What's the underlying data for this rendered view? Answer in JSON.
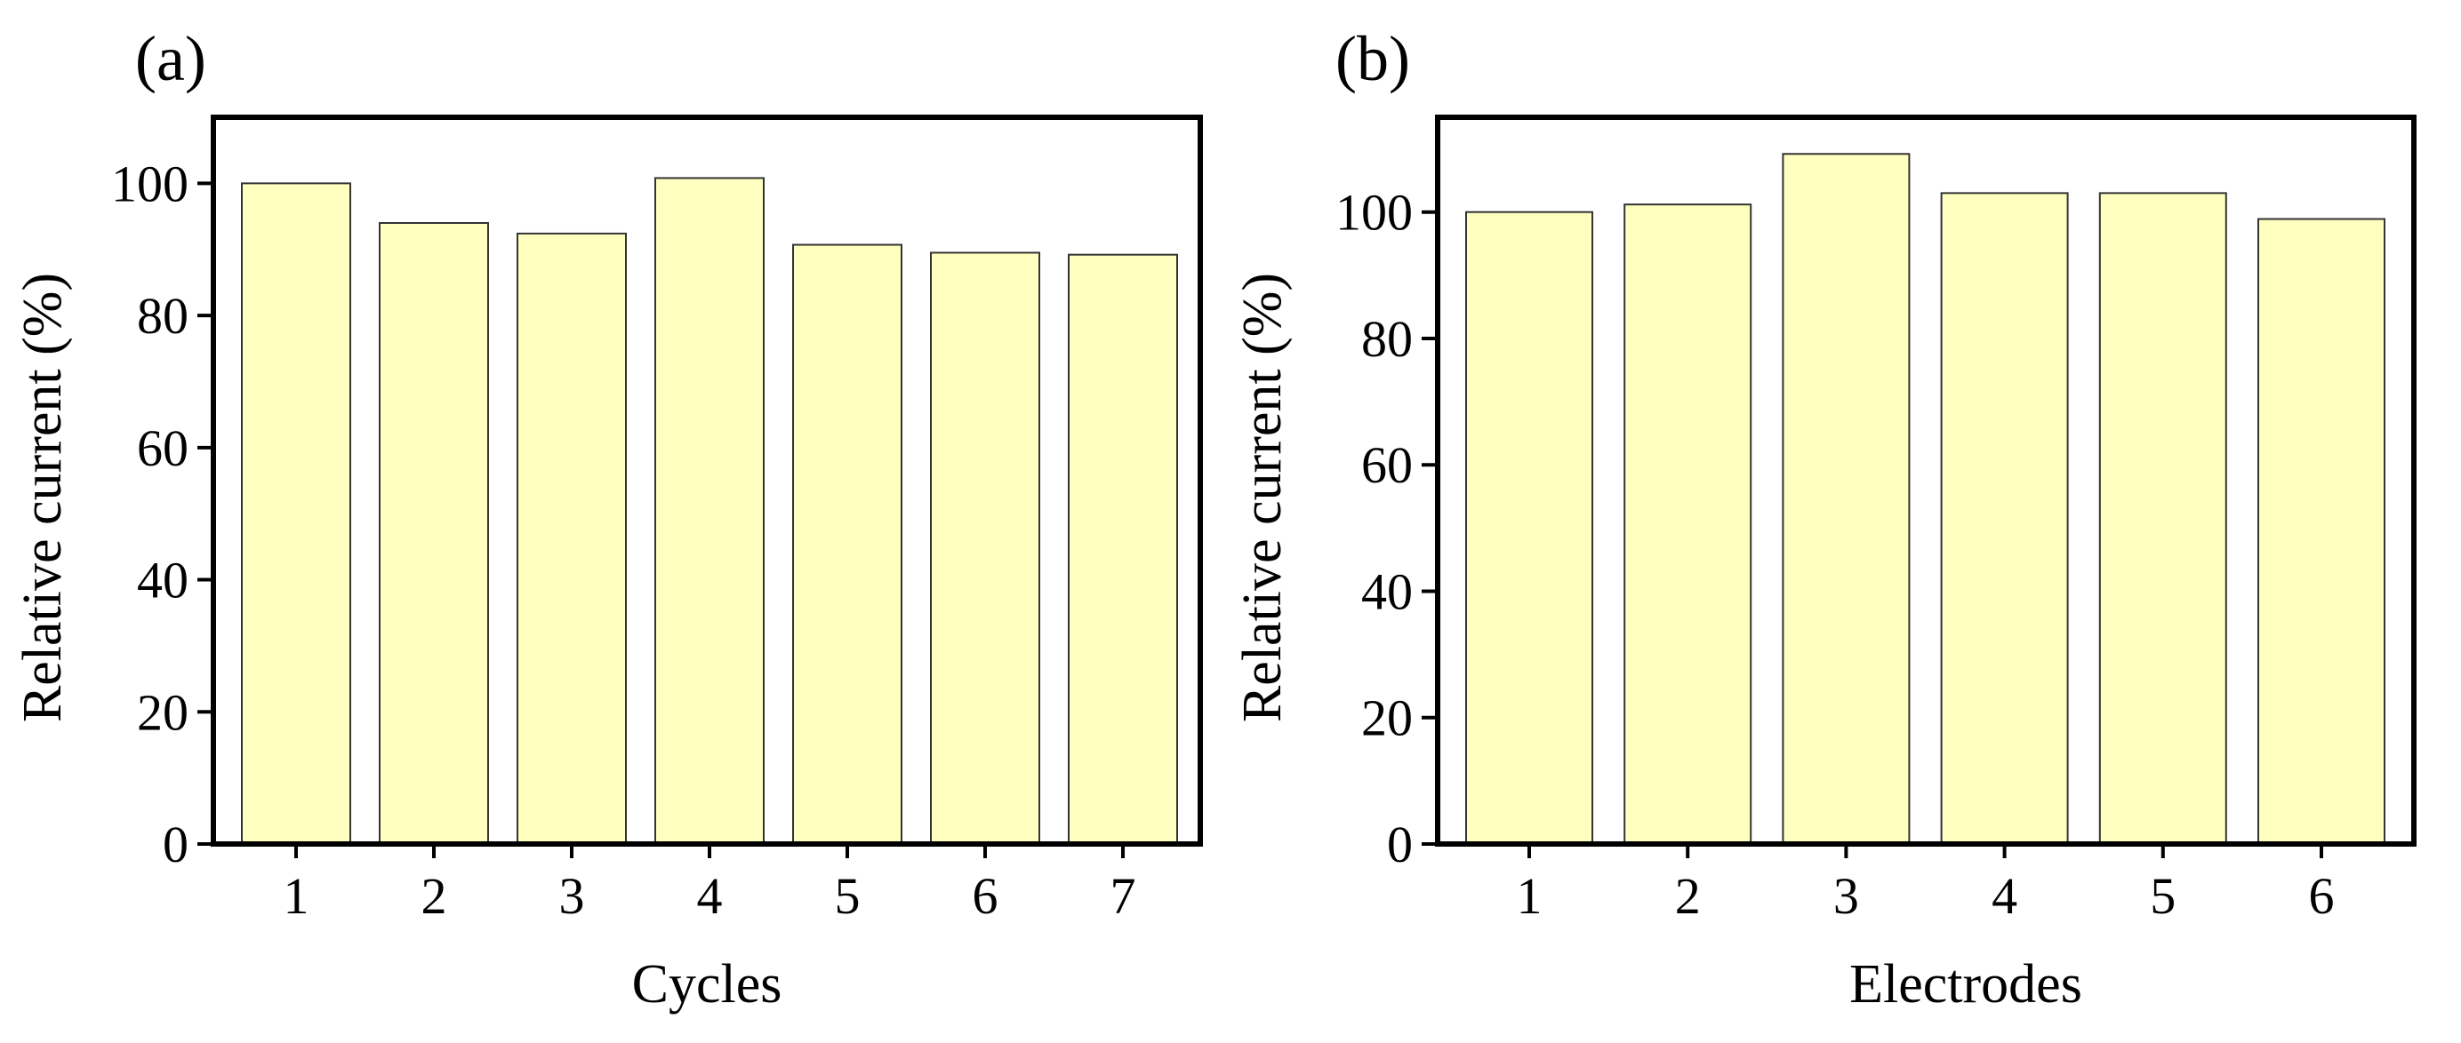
{
  "chart_data": [
    {
      "type": "bar",
      "panel_label": "(a)",
      "categories": [
        "1",
        "2",
        "3",
        "4",
        "5",
        "6",
        "7"
      ],
      "values": [
        100,
        94,
        92.4,
        100.8,
        90.7,
        89.5,
        89.2
      ],
      "title": "",
      "xlabel": "Cycles",
      "ylabel": "Relative current (%)",
      "ylim": [
        0,
        110
      ],
      "yticks": [
        "0",
        "20",
        "40",
        "60",
        "80",
        "100"
      ],
      "bar_color": "#ffffc0",
      "bar_edge_color": "#333333",
      "grid": false
    },
    {
      "type": "bar",
      "panel_label": "(b)",
      "categories": [
        "1",
        "2",
        "3",
        "4",
        "5",
        "6"
      ],
      "values": [
        100,
        101.2,
        109.2,
        103,
        103,
        98.9
      ],
      "title": "",
      "xlabel": "Electrodes",
      "ylabel": "Relative current (%)",
      "ylim": [
        0,
        115
      ],
      "yticks": [
        "0",
        "20",
        "40",
        "60",
        "80",
        "100"
      ],
      "bar_color": "#ffffc0",
      "bar_edge_color": "#333333",
      "grid": false
    }
  ]
}
